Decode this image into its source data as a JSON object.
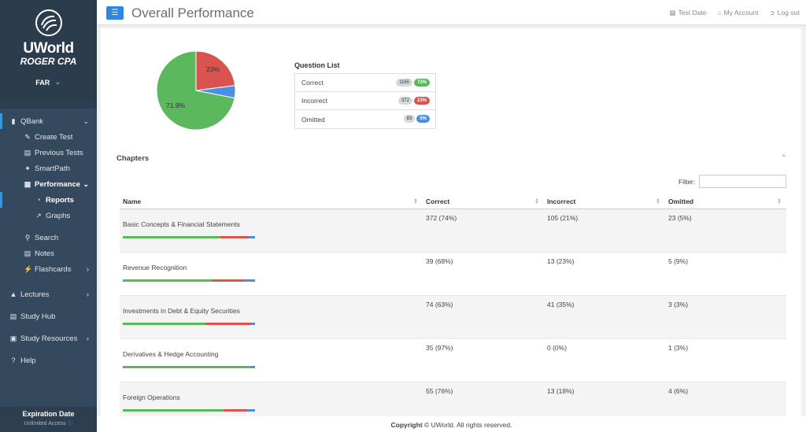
{
  "brand": {
    "line1": "UWorld",
    "line2": "ROGER CPA"
  },
  "section_selector": {
    "label": "FAR"
  },
  "nav": {
    "qbank": "QBank",
    "create_test": "Create Test",
    "previous_tests": "Previous Tests",
    "smartpath": "SmartPath",
    "performance": "Performance",
    "reports": "Reports",
    "graphs": "Graphs",
    "search": "Search",
    "notes": "Notes",
    "flashcards": "Flashcards",
    "lectures": "Lectures",
    "study_hub": "Study Hub",
    "study_resources": "Study Resources",
    "help": "Help"
  },
  "expiration": {
    "title": "Expiration Date",
    "sub": "Unlimited Access"
  },
  "header": {
    "title": "Overall Performance",
    "test_date": "Test Date",
    "my_account": "My Account",
    "log_out": "Log out"
  },
  "colors": {
    "correct": "#5cb85c",
    "incorrect": "#d9534f",
    "omitted": "#4a90e2",
    "accent": "#2e86de"
  },
  "pie": {
    "correct_pct": 71.9,
    "incorrect_pct": 23,
    "omitted_pct": 5.1,
    "correct_label": "71.9%",
    "incorrect_label": "23%"
  },
  "question_list": {
    "title": "Question List",
    "rows": [
      {
        "label": "Correct",
        "count": "1165",
        "pct": "72%",
        "color": "green"
      },
      {
        "label": "Incorrect",
        "count": "372",
        "pct": "23%",
        "color": "red"
      },
      {
        "label": "Omitted",
        "count": "83",
        "pct": "5%",
        "color": "blue"
      }
    ]
  },
  "chapters": {
    "title": "Chapters",
    "filter_label": "Filter:",
    "filter_value": "",
    "columns": [
      "Name",
      "Correct",
      "Incorrect",
      "Omitted"
    ],
    "rows": [
      {
        "name": "Basic Concepts & Financial Statements",
        "correct": "372 (74%)",
        "incorrect": "105 (21%)",
        "omitted": "23 (5%)",
        "c": 74,
        "i": 21,
        "o": 5
      },
      {
        "name": "Revenue Recognition",
        "correct": "39 (68%)",
        "incorrect": "13 (23%)",
        "omitted": "5 (9%)",
        "c": 68,
        "i": 23,
        "o": 9
      },
      {
        "name": "Investments in Debt & Equity Securities",
        "correct": "74 (63%)",
        "incorrect": "41 (35%)",
        "omitted": "3 (3%)",
        "c": 63,
        "i": 35,
        "o": 3
      },
      {
        "name": "Derivatives & Hedge Accounting",
        "correct": "35 (97%)",
        "incorrect": "0 (0%)",
        "omitted": "1 (3%)",
        "c": 97,
        "i": 0,
        "o": 3
      },
      {
        "name": "Foreign Operations",
        "correct": "55 (76%)",
        "incorrect": "13 (18%)",
        "omitted": "4 (6%)",
        "c": 76,
        "i": 18,
        "o": 6
      }
    ]
  },
  "footer": {
    "bold": "Copyright",
    "rest": "© UWorld. All rights reserved."
  }
}
